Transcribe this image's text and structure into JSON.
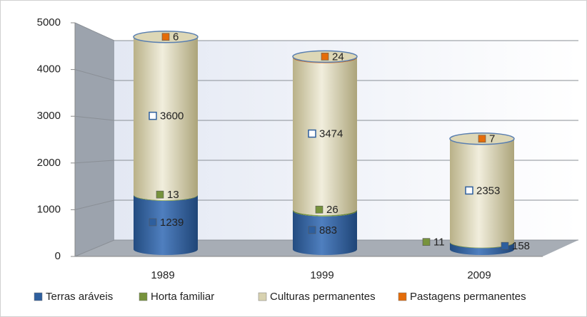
{
  "chart_data": {
    "type": "stacked-cylinder",
    "categories": [
      "1989",
      "1999",
      "2009"
    ],
    "series": [
      {
        "name": "Terras aráveis",
        "color": "#2e5f9e",
        "values": [
          1239,
          883,
          158
        ]
      },
      {
        "name": "Horta familiar",
        "color": "#77933c",
        "values": [
          13,
          26,
          11
        ]
      },
      {
        "name": "Culturas permanentes",
        "color": "#d8d2b0",
        "values": [
          3600,
          3474,
          2353
        ]
      },
      {
        "name": "Pastagens permanentes",
        "color": "#e46c0a",
        "values": [
          6,
          24,
          7
        ]
      }
    ],
    "ylim": [
      0,
      5000
    ],
    "yticks": [
      0,
      1000,
      2000,
      3000,
      4000,
      5000
    ],
    "grid": true,
    "legend": "bottom"
  }
}
